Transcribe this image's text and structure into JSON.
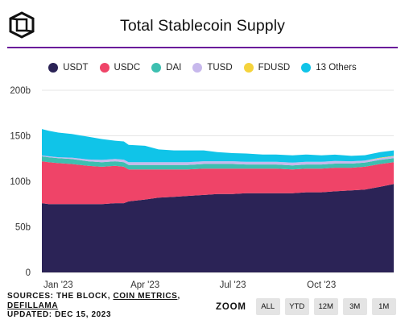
{
  "header": {
    "title": "Total Stablecoin Supply",
    "logo_icon": "the-block-cube-logo"
  },
  "legend": [
    {
      "name": "USDT",
      "color": "#2b2356"
    },
    {
      "name": "USDC",
      "color": "#ef4468"
    },
    {
      "name": "DAI",
      "color": "#3dbfb0"
    },
    {
      "name": "TUSD",
      "color": "#c7b8ec"
    },
    {
      "name": "FDUSD",
      "color": "#f5d33c"
    },
    {
      "name": "13 Others",
      "color": "#10c4e8"
    }
  ],
  "chart_data": {
    "type": "area",
    "stacked": true,
    "y_ticks": [
      "0",
      "50b",
      "100b",
      "150b",
      "200b"
    ],
    "x_ticks": [
      "Jan '23",
      "Apr '23",
      "Jul '23",
      "Oct '23"
    ],
    "ylim": [
      0,
      200
    ],
    "grid": "horizontal",
    "x": [
      "2022-12-15",
      "2022-12-22",
      "2023-01-01",
      "2023-01-15",
      "2023-02-01",
      "2023-02-15",
      "2023-03-01",
      "2023-03-10",
      "2023-03-15",
      "2023-04-01",
      "2023-04-15",
      "2023-05-01",
      "2023-05-15",
      "2023-06-01",
      "2023-06-15",
      "2023-07-01",
      "2023-07-15",
      "2023-08-01",
      "2023-08-15",
      "2023-09-01",
      "2023-09-15",
      "2023-10-01",
      "2023-10-15",
      "2023-11-01",
      "2023-11-15",
      "2023-12-01",
      "2023-12-15"
    ],
    "series": [
      {
        "name": "USDT",
        "values": [
          76,
          75,
          75,
          75,
          75,
          75,
          76,
          76,
          78,
          80,
          82,
          83,
          84,
          85,
          86,
          86,
          87,
          87,
          87,
          87,
          88,
          88,
          89,
          90,
          91,
          94,
          97
        ]
      },
      {
        "name": "USDC",
        "values": [
          46,
          46,
          45,
          44,
          42,
          41,
          41,
          40,
          35,
          33,
          31,
          30,
          29,
          29,
          28,
          28,
          27,
          27,
          27,
          26,
          26,
          26,
          26,
          25,
          25,
          25,
          24
        ]
      },
      {
        "name": "DAI",
        "values": [
          5.5,
          5.5,
          5.5,
          5.5,
          5,
          5,
          5,
          5,
          5,
          5,
          5,
          5,
          5,
          5,
          5,
          5,
          4.5,
          4.5,
          4.5,
          4.5,
          4.5,
          4.5,
          4.5,
          4.5,
          4.5,
          4.5,
          4.5
        ]
      },
      {
        "name": "TUSD",
        "values": [
          0.9,
          1,
          1,
          1.5,
          2,
          2.5,
          2.6,
          2.8,
          3,
          3,
          3,
          3,
          3,
          3,
          3,
          3,
          3,
          3,
          3,
          3,
          3,
          3,
          2.8,
          2.5,
          2.2,
          2,
          2
        ]
      },
      {
        "name": "FDUSD",
        "values": [
          0,
          0,
          0,
          0,
          0,
          0,
          0,
          0,
          0,
          0,
          0,
          0,
          0,
          0,
          0,
          0,
          0,
          0,
          0,
          0,
          0,
          0,
          0,
          0,
          0,
          0.5,
          0.5
        ]
      },
      {
        "name": "13 Others",
        "values": [
          29,
          28,
          27,
          26,
          25,
          23,
          20,
          20,
          19,
          18,
          14,
          13,
          13,
          12,
          10,
          9,
          9,
          8,
          8,
          8,
          8,
          7,
          7,
          6,
          6,
          6,
          6
        ]
      }
    ]
  },
  "footer": {
    "sources_prefix": "SOURCES: THE BLOCK, ",
    "source_link1": "COIN METRICS",
    "source_sep": ",",
    "source_link2": "DEFILLAMA",
    "updated": "UPDATED: DEC 15, 2023"
  },
  "zoom": {
    "label": "ZOOM",
    "buttons": [
      "ALL",
      "YTD",
      "12M",
      "3M",
      "1M"
    ]
  }
}
